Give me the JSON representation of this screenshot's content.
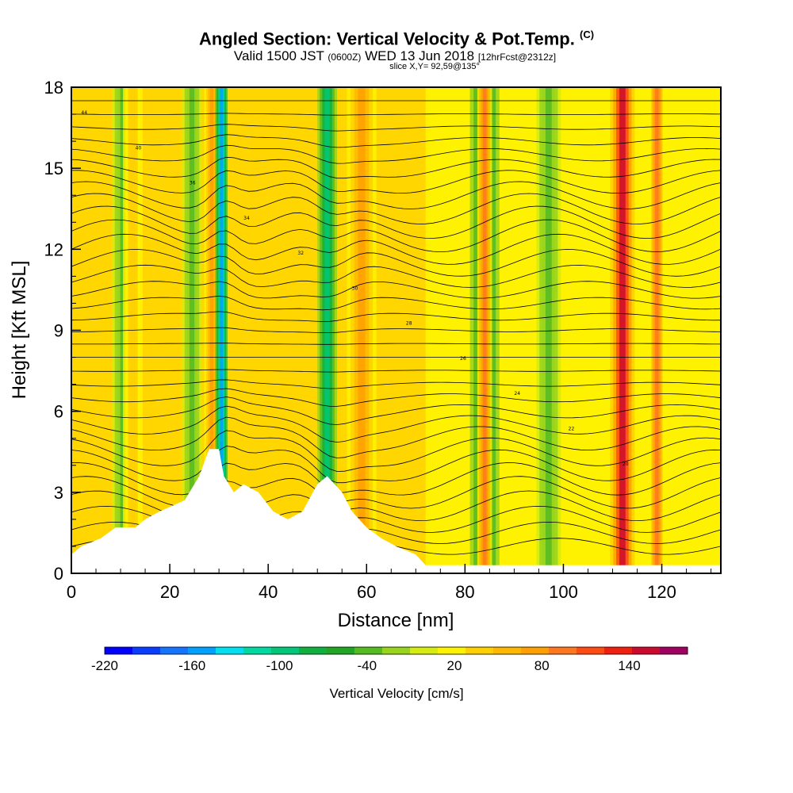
{
  "header": {
    "title": "Angled Section: Vertical Velocity & Pot.Temp.",
    "title_unit": "(C)",
    "valid_prefix": "Valid 1500 JST",
    "valid_utc": "(0600Z)",
    "valid_date": "WED 13 Jun 2018",
    "forecast": "[12hrFcst@2312z]",
    "slice": "slice X,Y= 92,59@135°"
  },
  "chart_data": {
    "type": "heatmap",
    "xlabel": "Distance [nm]",
    "ylabel": "Height [Kft MSL]",
    "xlim": [
      0,
      132
    ],
    "ylim": [
      0,
      18
    ],
    "xticks": [
      0,
      20,
      40,
      60,
      80,
      100,
      120
    ],
    "yticks": [
      0,
      3,
      6,
      9,
      12,
      15,
      18
    ],
    "background_color": "#fff200",
    "velocity_bands": [
      {
        "x_center": 10.5,
        "width": 4.5,
        "value": -40,
        "kind": "downdraft"
      },
      {
        "x_center": 12.5,
        "width": 4,
        "value": 40,
        "kind": "updraft"
      },
      {
        "x_center": 24.5,
        "width": 4,
        "value": -40,
        "kind": "downdraft"
      },
      {
        "x_center": 28.5,
        "width": 3,
        "value": 80,
        "kind": "updraft"
      },
      {
        "x_center": 30.5,
        "width": 2.5,
        "value": -160,
        "kind": "downdraft"
      },
      {
        "x_center": 52,
        "width": 4,
        "value": -100,
        "kind": "downdraft"
      },
      {
        "x_center": 59,
        "width": 6,
        "value": 80,
        "kind": "updraft"
      },
      {
        "x_center": 84,
        "width": 6,
        "value": -70,
        "kind": "downdraft"
      },
      {
        "x_center": 97,
        "width": 5,
        "value": -40,
        "kind": "downdraft"
      },
      {
        "x_center": 84,
        "width": 3,
        "value": 100,
        "kind": "updraft"
      },
      {
        "x_center": 112,
        "width": 5,
        "value": 150,
        "kind": "updraft"
      },
      {
        "x_center": 119,
        "width": 3,
        "value": 100,
        "kind": "updraft"
      }
    ],
    "terrain": [
      [
        0,
        0.7
      ],
      [
        2,
        1.0
      ],
      [
        6,
        1.3
      ],
      [
        9,
        1.7
      ],
      [
        13,
        1.7
      ],
      [
        15,
        2.0
      ],
      [
        18,
        2.3
      ],
      [
        23,
        2.7
      ],
      [
        26,
        3.6
      ],
      [
        28,
        4.6
      ],
      [
        30,
        4.6
      ],
      [
        31,
        3.6
      ],
      [
        33,
        3.0
      ],
      [
        35,
        3.3
      ],
      [
        38,
        3.0
      ],
      [
        41,
        2.3
      ],
      [
        44,
        2.0
      ],
      [
        47,
        2.3
      ],
      [
        50,
        3.3
      ],
      [
        52,
        3.6
      ],
      [
        55,
        3.0
      ],
      [
        57,
        2.3
      ],
      [
        60,
        1.7
      ],
      [
        63,
        1.3
      ],
      [
        66,
        1.0
      ],
      [
        70,
        0.7
      ],
      [
        72,
        0.3
      ],
      [
        132,
        0.3
      ]
    ],
    "theta_isolines_count": 34,
    "colorbar": {
      "title": "Vertical Velocity [cm/s]",
      "min": -220,
      "max": 180,
      "step": 20,
      "labels": [
        -220,
        -160,
        -100,
        -40,
        20,
        80,
        140
      ],
      "colors": [
        "#0000ff",
        "#0a3cff",
        "#1473ff",
        "#00a0ff",
        "#00e0f0",
        "#00d9a0",
        "#00c878",
        "#10b040",
        "#22a522",
        "#55bb22",
        "#99d41c",
        "#d6ec10",
        "#fff200",
        "#ffd000",
        "#ffb800",
        "#ffa000",
        "#ff7820",
        "#ff4a12",
        "#f02010",
        "#cc0a30",
        "#a00060",
        "#7a0099"
      ]
    },
    "contour_labels": [
      "44",
      "40",
      "36",
      "34",
      "32",
      "30",
      "28",
      "26",
      "24",
      "22",
      "20"
    ]
  }
}
